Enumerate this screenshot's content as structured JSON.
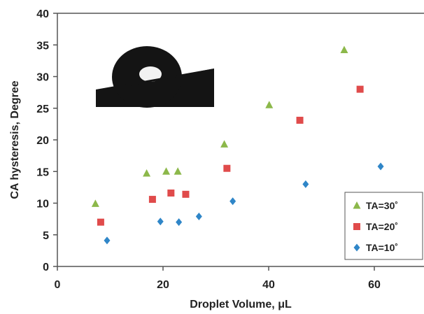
{
  "chart_data": {
    "type": "scatter",
    "title": "",
    "xlabel": "Droplet Volume, μL",
    "ylabel": "CA hysteresis, Degree",
    "xlim": [
      0,
      70
    ],
    "ylim": [
      0,
      40
    ],
    "xticks": [
      "0",
      "20",
      "40",
      "60"
    ],
    "yticks": [
      "0",
      "5",
      "10",
      "15",
      "20",
      "25",
      "30",
      "35",
      "40"
    ],
    "grid": false,
    "legend_position": "bottom-right",
    "inset": "droplet-image",
    "series": [
      {
        "name": "TA=30˚",
        "marker": "triangle",
        "color": "#8cb84a",
        "points": [
          [
            7.2,
            9.9
          ],
          [
            16.9,
            14.7
          ],
          [
            20.6,
            15.0
          ],
          [
            22.8,
            15.0
          ],
          [
            31.6,
            19.3
          ],
          [
            40.1,
            25.5
          ],
          [
            54.3,
            34.2
          ]
        ]
      },
      {
        "name": "TA=20˚",
        "marker": "square",
        "color": "#e04b4b",
        "points": [
          [
            8.2,
            7.0
          ],
          [
            18.0,
            10.6
          ],
          [
            21.5,
            11.6
          ],
          [
            24.3,
            11.4
          ],
          [
            32.1,
            15.5
          ],
          [
            45.9,
            23.1
          ],
          [
            57.3,
            28.0
          ]
        ]
      },
      {
        "name": "TA=10˚",
        "marker": "diamond",
        "color": "#2f86c8",
        "points": [
          [
            9.4,
            4.1
          ],
          [
            19.5,
            7.1
          ],
          [
            23.0,
            7.0
          ],
          [
            26.8,
            7.9
          ],
          [
            33.2,
            10.3
          ],
          [
            47.0,
            13.0
          ],
          [
            61.2,
            15.8
          ]
        ]
      }
    ]
  }
}
